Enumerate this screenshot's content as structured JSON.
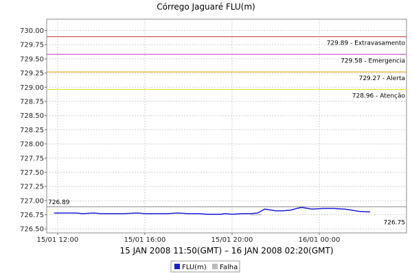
{
  "chart_data": {
    "type": "line",
    "title": "Córrego Jaguaré FLU(m)",
    "subtitle": "15 JAN 2008 11:50(GMT) – 16 JAN 2008 02:20(GMT)",
    "ylim": [
      726.43,
      730.2
    ],
    "yticks": [
      "730.00",
      "729.75",
      "729.50",
      "729.25",
      "729.00",
      "728.75",
      "728.50",
      "728.25",
      "728.00",
      "727.75",
      "727.50",
      "727.25",
      "727.00",
      "726.75",
      "726.50"
    ],
    "ytick_values": [
      730.0,
      729.75,
      729.5,
      729.25,
      729.0,
      728.75,
      728.5,
      728.25,
      728.0,
      727.75,
      727.5,
      727.25,
      727.0,
      726.75,
      726.5
    ],
    "xlim": [
      "2008-01-15 11:30",
      "2008-01-16 04:00"
    ],
    "xticks": [
      {
        "t": "2008-01-15 12:00",
        "label": "15/01 12:00"
      },
      {
        "t": "2008-01-15 16:00",
        "label": "15/01 16:00"
      },
      {
        "t": "2008-01-15 20:00",
        "label": "15/01 20:00"
      },
      {
        "t": "2008-01-16 00:00",
        "label": "16/01 00:00"
      }
    ],
    "reference_lines": [
      {
        "value": 729.89,
        "label": "729.89 - Extravasamento",
        "color": "#cc3333"
      },
      {
        "value": 729.58,
        "label": "729.58 - Emergencia",
        "color": "#cc33cc"
      },
      {
        "value": 729.27,
        "label": "729.27 - Alerta",
        "color": "#e8a200"
      },
      {
        "value": 728.96,
        "label": "728.96 - Atenção",
        "color": "#e8e000"
      }
    ],
    "marker_line": {
      "value": 726.89,
      "label": "726.89",
      "color": "#888888"
    },
    "end_label": "726.75",
    "series": [
      {
        "name": "FLU(m)",
        "color": "#1a1adb",
        "x": [
          "2008-01-15 11:50",
          "2008-01-15 12:20",
          "2008-01-15 12:50",
          "2008-01-15 13:10",
          "2008-01-15 13:40",
          "2008-01-15 14:00",
          "2008-01-15 14:20",
          "2008-01-15 15:00",
          "2008-01-15 15:40",
          "2008-01-15 16:00",
          "2008-01-15 16:40",
          "2008-01-15 17:00",
          "2008-01-15 17:30",
          "2008-01-15 18:00",
          "2008-01-15 18:30",
          "2008-01-15 18:50",
          "2008-01-15 19:10",
          "2008-01-15 19:30",
          "2008-01-15 19:40",
          "2008-01-15 20:00",
          "2008-01-15 20:30",
          "2008-01-15 20:50",
          "2008-01-15 21:10",
          "2008-01-15 21:30",
          "2008-01-15 22:00",
          "2008-01-15 22:20",
          "2008-01-15 22:40",
          "2008-01-15 23:10",
          "2008-01-15 23:40",
          "2008-01-16 00:10",
          "2008-01-16 00:40",
          "2008-01-16 01:10",
          "2008-01-16 01:30",
          "2008-01-16 01:50",
          "2008-01-16 02:20"
        ],
        "values": [
          726.78,
          726.78,
          726.78,
          726.77,
          726.78,
          726.77,
          726.77,
          726.77,
          726.78,
          726.77,
          726.77,
          726.77,
          726.78,
          726.77,
          726.77,
          726.76,
          726.76,
          726.76,
          726.77,
          726.76,
          726.77,
          726.77,
          726.78,
          726.85,
          726.82,
          726.82,
          726.83,
          726.88,
          726.85,
          726.86,
          726.86,
          726.85,
          726.83,
          726.81,
          726.8
        ]
      },
      {
        "name": "Falha",
        "color": "#bbbbbb",
        "x": [
          "2008-01-15 20:50",
          "2008-01-15 21:20"
        ],
        "values": [
          726.75,
          726.75
        ]
      }
    ],
    "legend": {
      "placement": "bottom",
      "items": [
        {
          "label": "FLU(m)",
          "color": "#1a1adb"
        },
        {
          "label": "Falha",
          "color": "#bbbbbb"
        }
      ]
    },
    "grid": true
  }
}
